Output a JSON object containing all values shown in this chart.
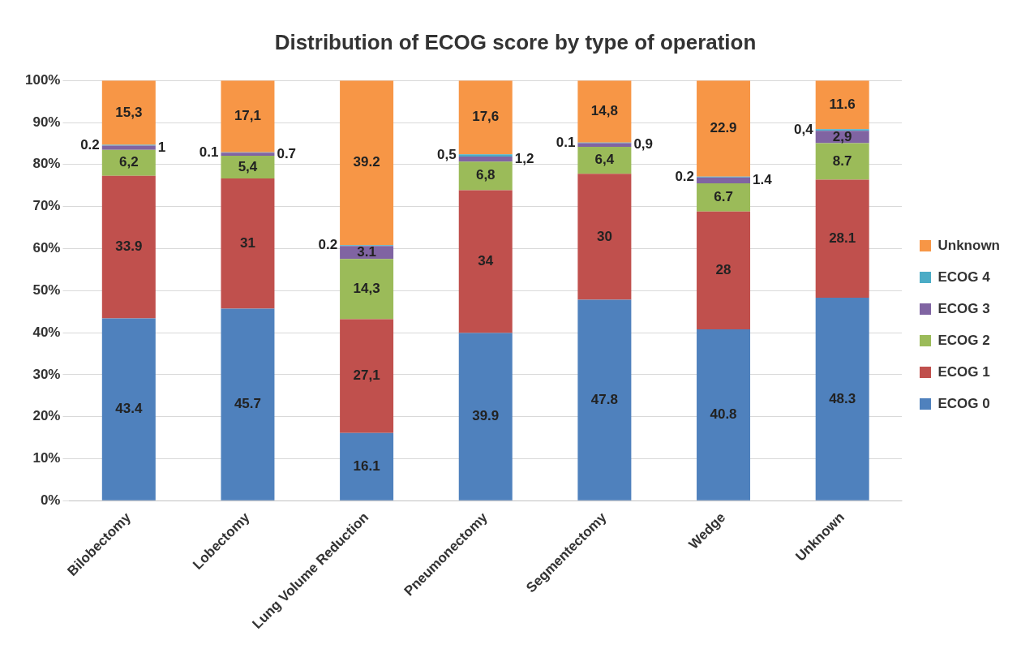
{
  "chart_data": {
    "type": "bar",
    "title": "Distribution of ECOG score by type of operation",
    "categories": [
      "Bilobectomy",
      "Lobectomy",
      "Lung Volume Reduction",
      "Pneumonectomy",
      "Segmentectomy",
      "Wedge",
      "Unknown"
    ],
    "stacked": true,
    "series": [
      {
        "name": "ECOG 0",
        "color": "#4f81bd",
        "values": [
          43.4,
          45.7,
          16.1,
          39.9,
          47.8,
          40.8,
          48.3
        ],
        "value_labels": [
          "43.4",
          "45.7",
          "16.1",
          "39.9",
          "47.8",
          "40.8",
          "48.3"
        ]
      },
      {
        "name": "ECOG 1",
        "color": "#c0504d",
        "values": [
          33.9,
          31,
          27.1,
          34,
          30,
          28,
          28.1
        ],
        "value_labels": [
          "33.9",
          "31",
          "27,1",
          "34",
          "30",
          "28",
          "28.1"
        ]
      },
      {
        "name": "ECOG 2",
        "color": "#9bbb59",
        "values": [
          6.2,
          5.4,
          14.3,
          6.8,
          6.4,
          6.7,
          8.7
        ],
        "value_labels": [
          "6,2",
          "5,4",
          "14,3",
          "6,8",
          "6,4",
          "6.7",
          "8.7"
        ]
      },
      {
        "name": "ECOG 3",
        "color": "#8064a2",
        "values": [
          1,
          0.7,
          3.1,
          1.2,
          0.9,
          1.4,
          2.9
        ],
        "value_labels": [
          "1",
          "0.7",
          "3.1",
          "1,2",
          "0,9",
          "1.4",
          "2,9"
        ]
      },
      {
        "name": "ECOG 4",
        "color": "#4bacc6",
        "values": [
          0.2,
          0.1,
          0.2,
          0.5,
          0.1,
          0.2,
          0.4
        ],
        "value_labels": [
          "0.2",
          "0.1",
          "0.2",
          "0,5",
          "0.1",
          "0.2",
          "0,4"
        ]
      },
      {
        "name": "Unknown",
        "color": "#f79646",
        "values": [
          15.3,
          17.1,
          39.2,
          17.6,
          14.8,
          22.9,
          11.6
        ],
        "value_labels": [
          "15,3",
          "17,1",
          "39.2",
          "17,6",
          "14,8",
          "22.9",
          "11.6"
        ]
      }
    ],
    "ylim": [
      0,
      100
    ],
    "yticks": [
      {
        "value": 0,
        "label": "0%"
      },
      {
        "value": 10,
        "label": "10%"
      },
      {
        "value": 20,
        "label": "20%"
      },
      {
        "value": 30,
        "label": "30%"
      },
      {
        "value": 40,
        "label": "40%"
      },
      {
        "value": 50,
        "label": "50%"
      },
      {
        "value": 60,
        "label": "60%"
      },
      {
        "value": 70,
        "label": "70%"
      },
      {
        "value": 80,
        "label": "80%"
      },
      {
        "value": 90,
        "label": "90%"
      },
      {
        "value": 100,
        "label": "100%"
      }
    ],
    "grid": "y",
    "legend": "right"
  }
}
